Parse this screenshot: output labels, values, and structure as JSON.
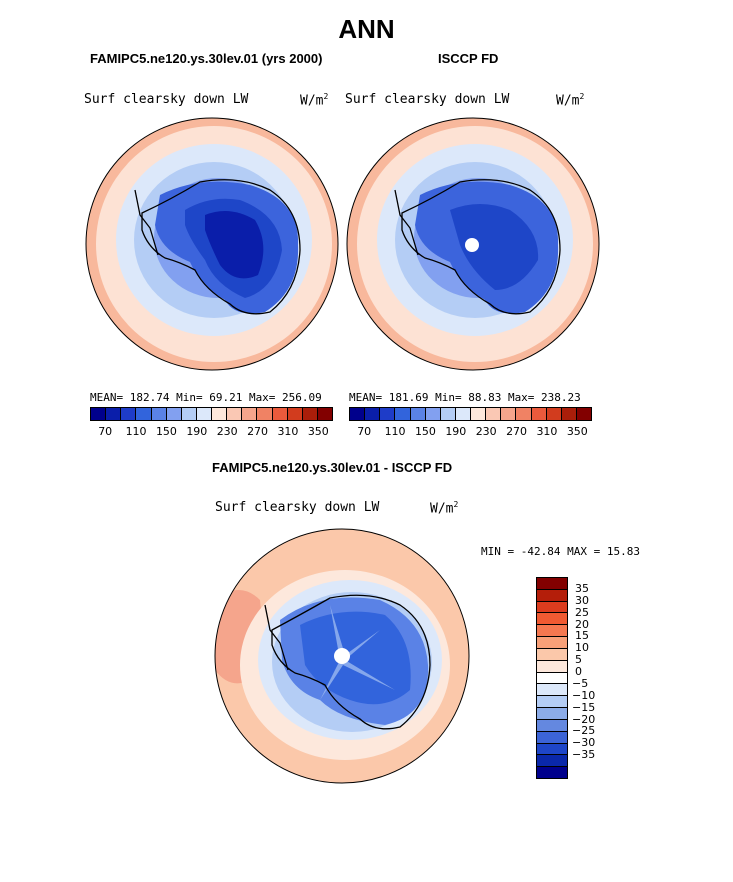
{
  "title": "ANN",
  "panels": [
    {
      "header": "FAMIPC5.ne120.ys.30lev.01 (yrs 2000)",
      "variable": "Surf clearsky down LW",
      "units": "W/m",
      "units_exp": "2",
      "stats": "MEAN= 182.74  Min=  69.21  Max= 256.09"
    },
    {
      "header": "ISCCP FD",
      "variable": "Surf clearsky down LW",
      "units": "W/m",
      "units_exp": "2",
      "stats": "MEAN= 181.69  Min=  88.83  Max= 238.23"
    }
  ],
  "diff_panel": {
    "header": "FAMIPC5.ne120.ys.30lev.01 - ISCCP FD",
    "variable": "Surf clearsky down LW",
    "units": "W/m",
    "units_exp": "2",
    "stats": "MIN = -42.84 MAX =  15.83"
  },
  "colorbar_abs": {
    "colors": [
      "#00008c",
      "#0a1eaa",
      "#1e3cc8",
      "#3264dc",
      "#5a82e6",
      "#82a0f0",
      "#b4cdf5",
      "#dce8fa",
      "#fde8dc",
      "#fac8b4",
      "#f5a58c",
      "#f08264",
      "#eb5a3c",
      "#d23c1e",
      "#aa1e0a",
      "#820000"
    ],
    "labels": [
      "70",
      "110",
      "150",
      "190",
      "230",
      "270",
      "310",
      "350"
    ]
  },
  "colorbar_diff": {
    "colors": [
      "#820000",
      "#b41e0a",
      "#dc3c1e",
      "#f05a32",
      "#f57850",
      "#f8a078",
      "#fbc8aa",
      "#fde8dc",
      "#ffffff",
      "#dce8fa",
      "#b4cdf5",
      "#8cace8",
      "#6488e0",
      "#3c64d7",
      "#1e46c8",
      "#0a28aa",
      "#00008c"
    ],
    "labels": [
      "35",
      "30",
      "25",
      "20",
      "15",
      "10",
      "5",
      "0",
      "-5",
      "-10",
      "-15",
      "-20",
      "-25",
      "-30",
      "-35"
    ]
  }
}
